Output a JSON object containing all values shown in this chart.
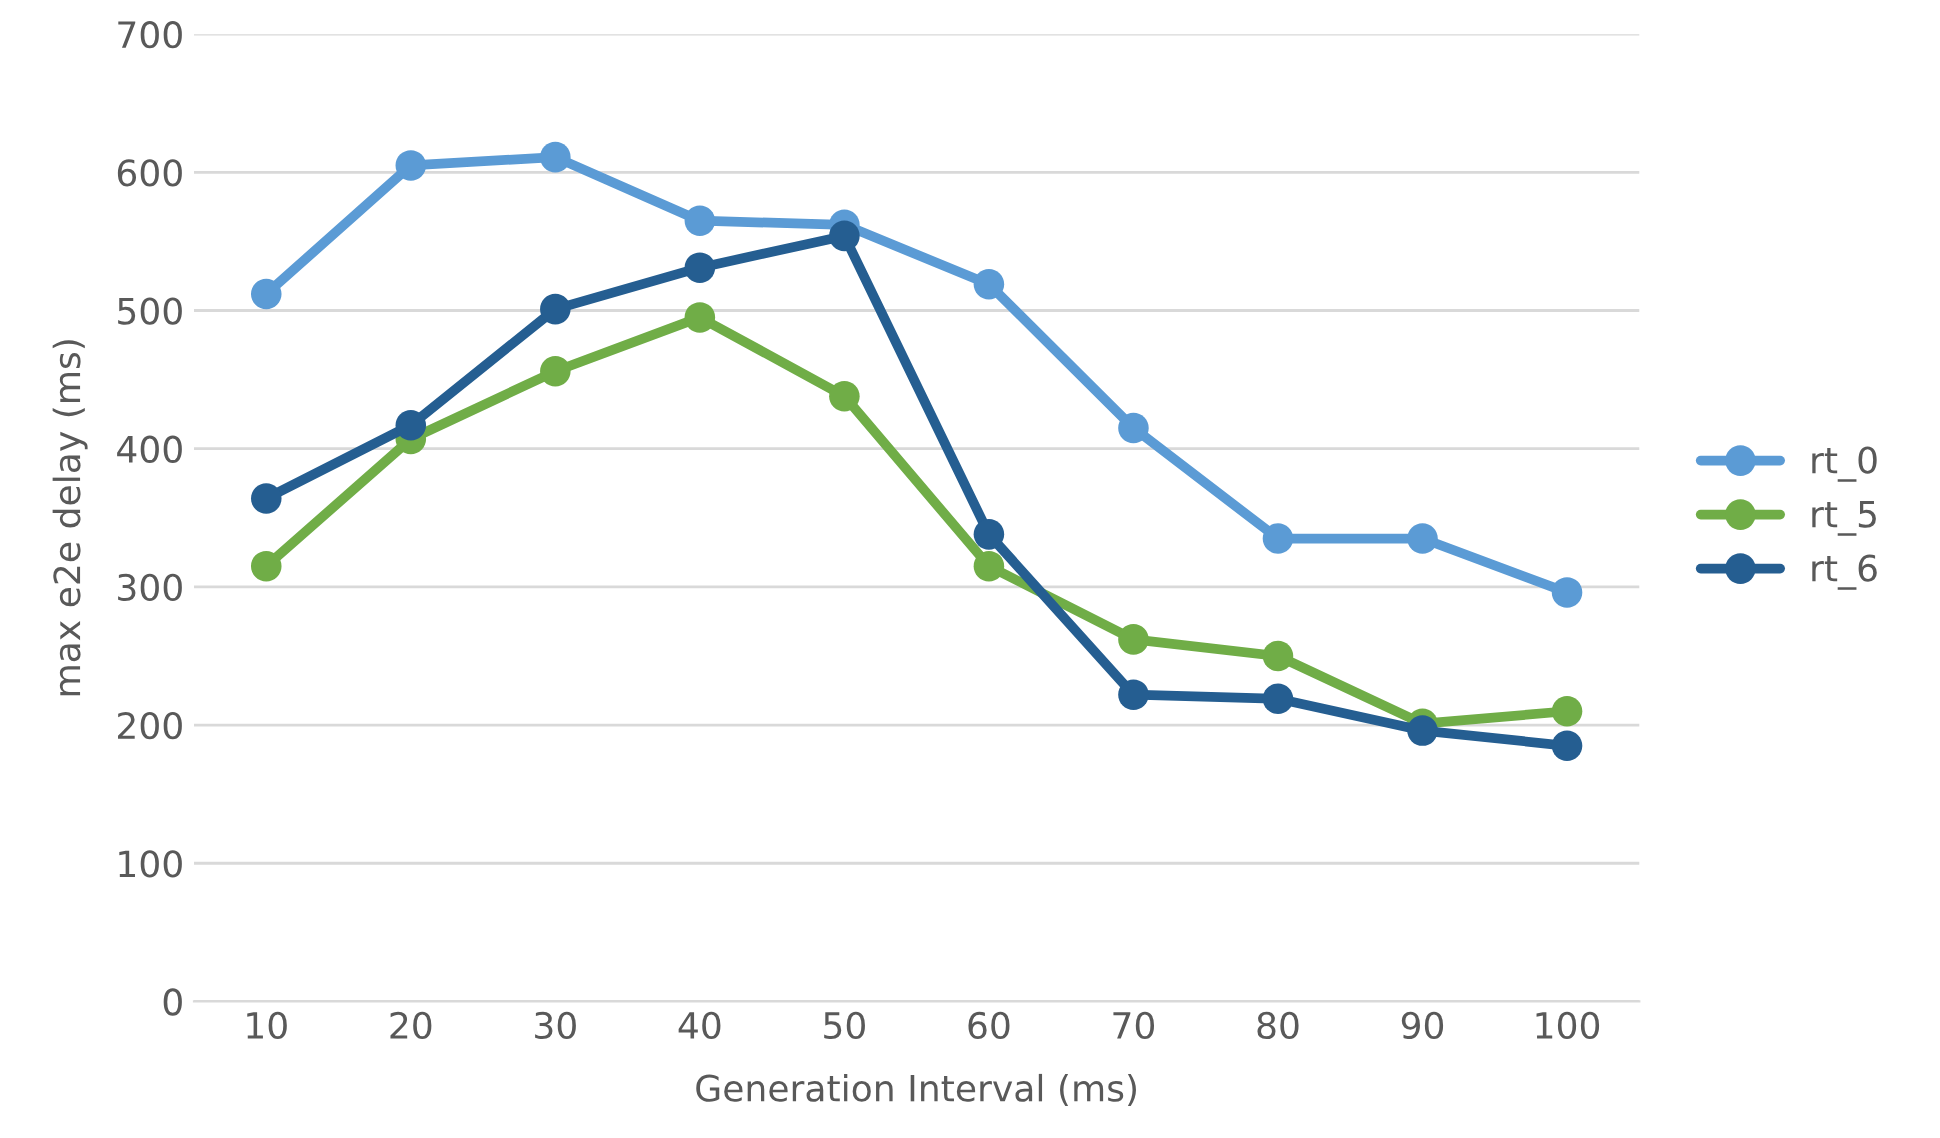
{
  "chart_data": {
    "type": "line",
    "xlabel": "Generation Interval (ms)",
    "ylabel": "max e2e delay (ms)",
    "categories": [
      "10",
      "20",
      "30",
      "40",
      "50",
      "60",
      "70",
      "80",
      "90",
      "100"
    ],
    "series": [
      {
        "name": "rt_0",
        "color": "#5b9bd5",
        "values": [
          512,
          605,
          611,
          565,
          562,
          519,
          415,
          335,
          335,
          296
        ]
      },
      {
        "name": "rt_5",
        "color": "#70ad47",
        "values": [
          315,
          407,
          456,
          495,
          438,
          315,
          262,
          250,
          201,
          210
        ]
      },
      {
        "name": "rt_6",
        "color": "#255e91",
        "values": [
          364,
          417,
          501,
          531,
          554,
          338,
          222,
          219,
          196,
          185
        ]
      }
    ],
    "ylim": [
      0,
      700
    ],
    "yticks": [
      0,
      100,
      200,
      300,
      400,
      500,
      600,
      700
    ],
    "grid": "y",
    "legend": "right",
    "marker": "circle",
    "line_style": "solid"
  }
}
